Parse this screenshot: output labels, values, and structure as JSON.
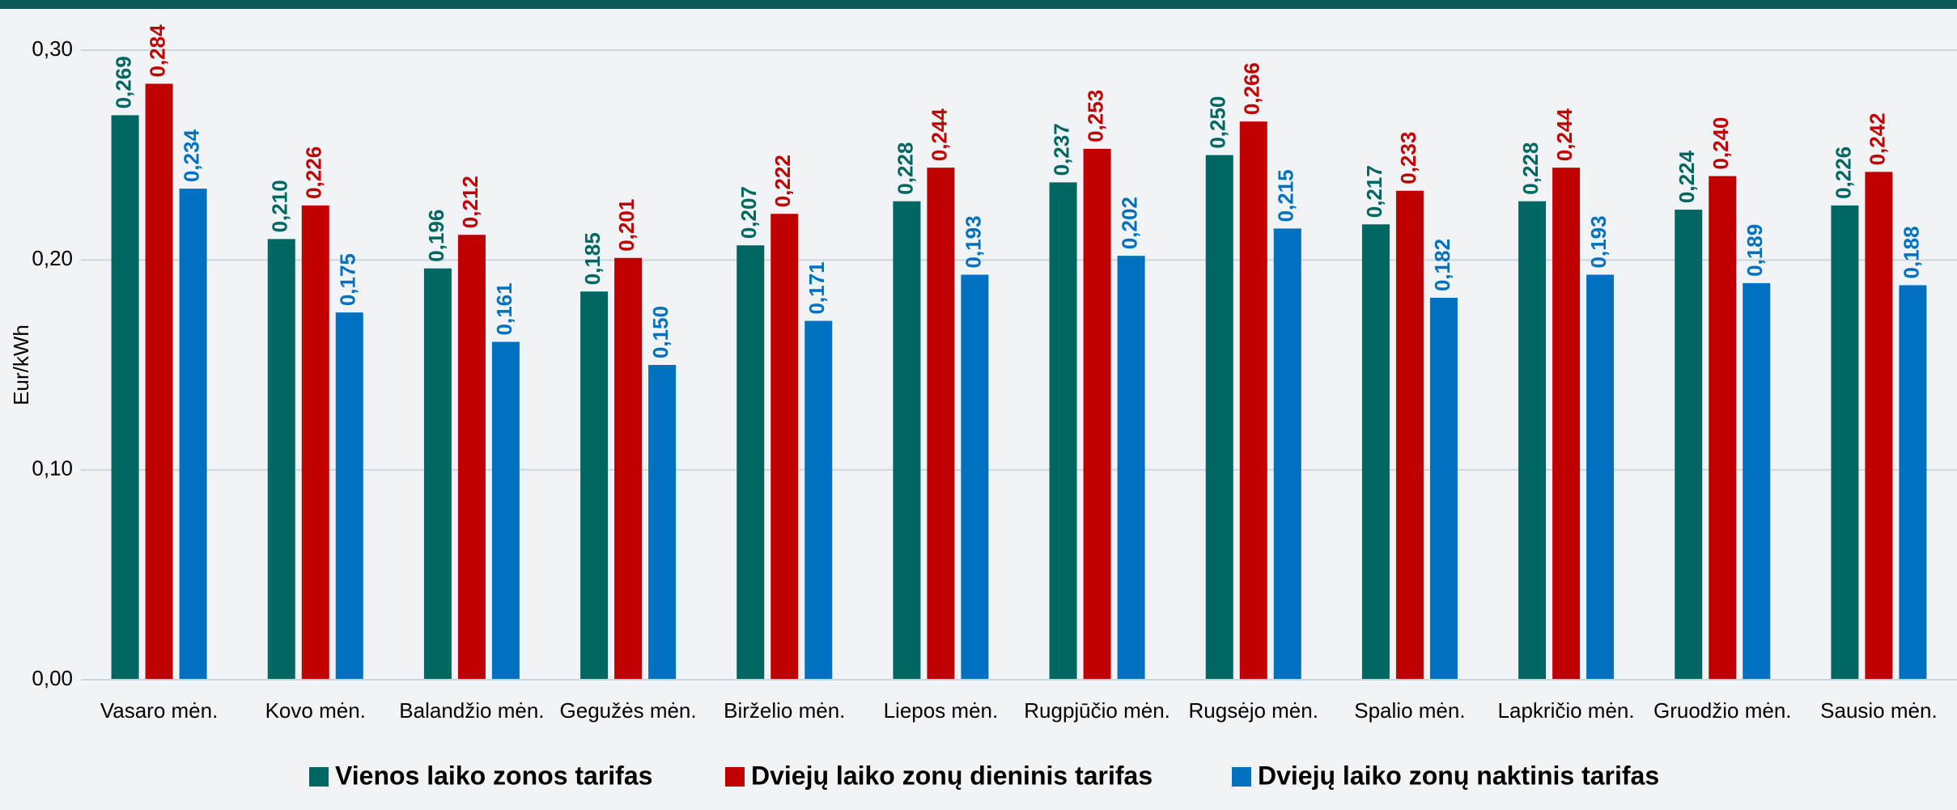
{
  "chart_data": {
    "type": "bar",
    "y_label": "Eur/kWh",
    "categories": [
      "Vasaro mėn.",
      "Kovo mėn.",
      "Balandžio mėn.",
      "Gegužės mėn.",
      "Birželio mėn.",
      "Liepos mėn.",
      "Rugpjūčio mėn.",
      "Rugsėjo mėn.",
      "Spalio mėn.",
      "Lapkričio mėn.",
      "Gruodžio mėn.",
      "Sausio mėn."
    ],
    "series": [
      {
        "name": "Vienos laiko zonos tarifas",
        "color": "#006661",
        "values": [
          0.269,
          0.21,
          0.196,
          0.185,
          0.207,
          0.228,
          0.237,
          0.25,
          0.217,
          0.228,
          0.224,
          0.226
        ],
        "value_labels": [
          "0,269",
          "0,210",
          "0,196",
          "0,185",
          "0,207",
          "0,228",
          "0,237",
          "0,250",
          "0,217",
          "0,228",
          "0,224",
          "0,226"
        ]
      },
      {
        "name": "Dviejų laiko zonų dieninis tarifas",
        "color": "#c00000",
        "values": [
          0.284,
          0.226,
          0.212,
          0.201,
          0.222,
          0.244,
          0.253,
          0.266,
          0.233,
          0.244,
          0.24,
          0.242
        ],
        "value_labels": [
          "0,284",
          "0,226",
          "0,212",
          "0,201",
          "0,222",
          "0,244",
          "0,253",
          "0,266",
          "0,233",
          "0,244",
          "0,240",
          "0,242"
        ]
      },
      {
        "name": "Dviejų laiko zonų naktinis tarifas",
        "color": "#0070c0",
        "values": [
          0.234,
          0.175,
          0.161,
          0.15,
          0.171,
          0.193,
          0.202,
          0.215,
          0.182,
          0.193,
          0.189,
          0.188
        ],
        "value_labels": [
          "0,234",
          "0,175",
          "0,161",
          "0,150",
          "0,171",
          "0,193",
          "0,202",
          "0,215",
          "0,182",
          "0,193",
          "0,189",
          "0,188"
        ]
      }
    ],
    "ylim": [
      0,
      0.3
    ],
    "yticks": [
      {
        "value": 0,
        "label": "0,00"
      },
      {
        "value": 0.1,
        "label": "0,10"
      },
      {
        "value": 0.2,
        "label": "0,20"
      },
      {
        "value": 0.3,
        "label": "0,30"
      }
    ],
    "grid": true,
    "legend": "bottom"
  }
}
